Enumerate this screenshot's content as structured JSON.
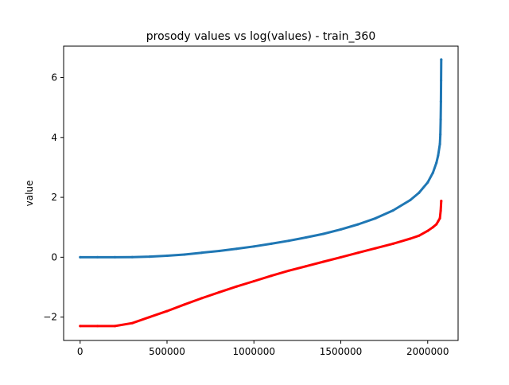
{
  "chart_data": {
    "type": "scatter",
    "title": "prosody values vs log(values) - train_360",
    "xlabel": "",
    "ylabel": "value",
    "xlim": [
      -95000,
      2175000
    ],
    "ylim": [
      -2.78,
      7.05
    ],
    "xticks": [
      0,
      500000,
      1000000,
      1500000,
      2000000
    ],
    "xtick_labels": [
      "0",
      "500000",
      "1000000",
      "1500000",
      "2000000"
    ],
    "yticks": [
      -2,
      0,
      2,
      4,
      6
    ],
    "ytick_labels": [
      "−2",
      "0",
      "2",
      "4",
      "6"
    ],
    "grid": false,
    "legend": "none",
    "series": [
      {
        "color": "#1f77b4",
        "x": [
          0,
          100000,
          200000,
          300000,
          400000,
          500000,
          600000,
          700000,
          800000,
          900000,
          1000000,
          1100000,
          1200000,
          1300000,
          1400000,
          1500000,
          1600000,
          1700000,
          1800000,
          1900000,
          1950000,
          2000000,
          2030000,
          2050000,
          2060000,
          2070000,
          2073000,
          2075000,
          2076000,
          2077000,
          2078000
        ],
        "y": [
          0.0,
          0.0,
          0.0,
          0.005,
          0.02,
          0.05,
          0.09,
          0.15,
          0.21,
          0.28,
          0.36,
          0.45,
          0.55,
          0.66,
          0.78,
          0.93,
          1.1,
          1.3,
          1.56,
          1.91,
          2.15,
          2.5,
          2.82,
          3.15,
          3.4,
          3.78,
          4.1,
          4.6,
          5.2,
          5.9,
          6.6
        ]
      },
      {
        "color": "#ff0000",
        "x": [
          0,
          100000,
          200000,
          300000,
          400000,
          500000,
          600000,
          700000,
          800000,
          900000,
          1000000,
          1100000,
          1200000,
          1300000,
          1400000,
          1500000,
          1600000,
          1700000,
          1800000,
          1900000,
          1950000,
          2000000,
          2030000,
          2050000,
          2060000,
          2070000,
          2075000,
          2078000
        ],
        "y": [
          -2.3,
          -2.3,
          -2.3,
          -2.2,
          -2.0,
          -1.8,
          -1.58,
          -1.37,
          -1.17,
          -0.98,
          -0.8,
          -0.62,
          -0.45,
          -0.3,
          -0.15,
          0.0,
          0.15,
          0.3,
          0.45,
          0.62,
          0.72,
          0.88,
          1.0,
          1.1,
          1.2,
          1.3,
          1.55,
          1.88
        ]
      }
    ]
  }
}
